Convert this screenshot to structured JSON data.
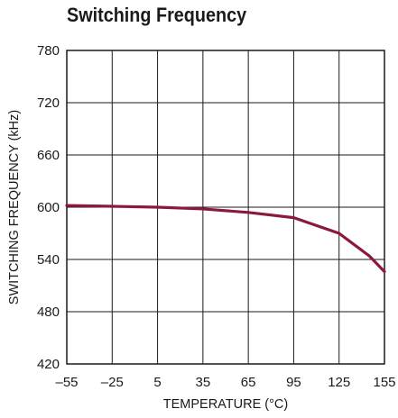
{
  "chart_data": {
    "type": "line",
    "title": "Switching Frequency",
    "xlabel": "TEMPERATURE (°C)",
    "ylabel": "SWITCHING FREQUENCY (kHz)",
    "xlim": [
      -55,
      155
    ],
    "ylim": [
      420,
      780
    ],
    "xticks": [
      -55,
      -25,
      5,
      35,
      65,
      95,
      125,
      155
    ],
    "xtick_labels": [
      "–55",
      "–25",
      "5",
      "35",
      "65",
      "95",
      "125",
      "155"
    ],
    "yticks": [
      420,
      480,
      540,
      600,
      660,
      720,
      780
    ],
    "ytick_labels": [
      "420",
      "480",
      "540",
      "600",
      "660",
      "720",
      "780"
    ],
    "grid": true,
    "series": [
      {
        "color": "#8b1a3a",
        "x": [
          -55,
          -25,
          5,
          35,
          65,
          95,
          125,
          145,
          155
        ],
        "y": [
          602,
          601,
          600,
          598,
          594,
          588,
          570,
          544,
          526
        ]
      }
    ]
  }
}
